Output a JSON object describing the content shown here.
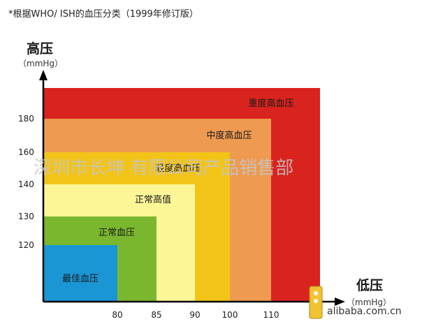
{
  "chart_data": {
    "type": "nested-region",
    "title": "*根据WHO/ ISH的血压分类（1999年修订版）",
    "y_axis": {
      "label": "高压",
      "unit": "（mmHg）",
      "ticks": [
        120,
        130,
        140,
        160,
        180
      ],
      "range": [
        107,
        188
      ]
    },
    "x_axis": {
      "label": "低压",
      "unit": "（mmHg）",
      "ticks": [
        80,
        85,
        90,
        100,
        110
      ],
      "range": [
        73,
        115
      ]
    },
    "categories": [
      {
        "label": "重度高血压",
        "x_max": 115,
        "y_max": 188,
        "color": "#d9231e"
      },
      {
        "label": "中度高血压",
        "x_max": 110,
        "y_max": 180,
        "color": "#ee9a51"
      },
      {
        "label": "轻度高血压",
        "x_max": 100,
        "y_max": 160,
        "color": "#f3c418"
      },
      {
        "label": "正常高值",
        "x_max": 90,
        "y_max": 140,
        "color": "#fdf696"
      },
      {
        "label": "正常血压",
        "x_max": 85,
        "y_max": 130,
        "color": "#7ab72f"
      },
      {
        "label": "最佳血压",
        "x_max": 80,
        "y_max": 120,
        "color": "#1a96d5"
      }
    ],
    "watermark": "深圳市长坤 有限公司产品销售部",
    "source_text": "alibaba.com.cn"
  }
}
